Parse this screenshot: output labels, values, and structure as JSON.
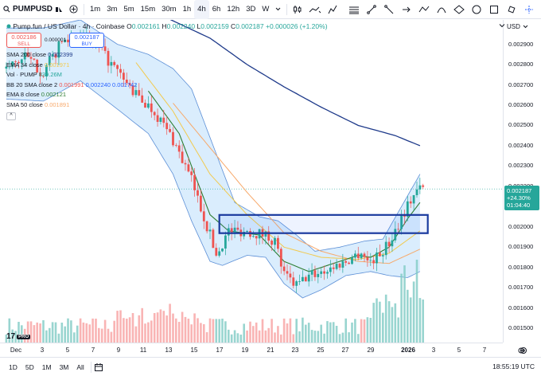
{
  "toolbar": {
    "symbol": "PUMPUSD",
    "intervals": [
      "1m",
      "3m",
      "5m",
      "15m",
      "30m",
      "1h",
      "4h",
      "6h",
      "12h",
      "3D",
      "W"
    ],
    "active_interval": "4h"
  },
  "header": {
    "title": "Pump.fun / US Dollar · 4h · Coinbase",
    "o_label": "O",
    "o_value": "0.002161",
    "h_label": "H",
    "h_value": "0.002240",
    "l_label": "L",
    "l_value": "0.002159",
    "c_label": "C",
    "c_value": "0.002187",
    "change": "+0.000026 (+1.20%)"
  },
  "trade": {
    "sell_price": "0.002186",
    "sell_label": "SELL",
    "spread": "0.000001",
    "buy_price": "0.002187",
    "buy_label": "BUY"
  },
  "legend": [
    {
      "label": "SMA 200 close",
      "values": [
        "0.002399"
      ],
      "colors": [
        "#1e3a8a"
      ]
    },
    {
      "label": "EMA 34 close",
      "values": [
        "0.001971"
      ],
      "colors": [
        "#f2c94c"
      ]
    },
    {
      "label": "Vol · PUMP",
      "values": [
        "839.26M"
      ],
      "colors": [
        "#26a69a"
      ]
    },
    {
      "label": "BB 20 SMA close 2",
      "values": [
        "0.001991",
        "0.002240",
        "0.001742"
      ],
      "colors": [
        "#ef5350",
        "#2962ff",
        "#2962ff"
      ]
    },
    {
      "label": "EMA 8 close",
      "values": [
        "0.002121"
      ],
      "colors": [
        "#2e7d32"
      ]
    },
    {
      "label": "SMA 50 close",
      "values": [
        "0.001891"
      ],
      "colors": [
        "#f7a96b"
      ]
    }
  ],
  "collapse_glyph": "^",
  "price_scale": {
    "currency": "USD",
    "labels": [
      "0.002900",
      "0.002800",
      "0.002700",
      "0.002600",
      "0.002500",
      "0.002400",
      "0.002300",
      "0.002200",
      "0.002100",
      "0.002000",
      "0.001900",
      "0.001800",
      "0.001700",
      "0.001600",
      "0.001500"
    ],
    "current_price": "0.002187",
    "current_change": "+24.30%",
    "countdown": "01:04:40"
  },
  "time_axis": [
    "Dec",
    "3",
    "5",
    "7",
    "9",
    "11",
    "13",
    "15",
    "17",
    "19",
    "21",
    "23",
    "25",
    "27",
    "29",
    "2026",
    "3",
    "5",
    "7"
  ],
  "bottom_bar": {
    "ranges": [
      "1D",
      "5D",
      "1M",
      "3M",
      "All"
    ],
    "clock": "18:55:19 UTC"
  },
  "logo": {
    "text": "17",
    "badge": "PRO"
  },
  "colors": {
    "up": "#26a69a",
    "down": "#ef5350",
    "vol_up": "#80cbc4",
    "vol_down": "#f7a1a1",
    "bb_fill": "#bbdefb",
    "bb_line": "#5c8fd6",
    "sma200": "#1e3a8a",
    "ema34": "#f2c94c",
    "ema8": "#2e7d32",
    "sma50": "#f7a96b",
    "bb_basis": "#ef9a9a",
    "zone": "#1a3a9e"
  },
  "chart_data": {
    "type": "candlestick",
    "title": "Pump.fun / US Dollar · 4h · Coinbase",
    "x_labels": [
      "Dec",
      "3",
      "5",
      "7",
      "9",
      "11",
      "13",
      "15",
      "17",
      "19",
      "21",
      "23",
      "25",
      "27",
      "29",
      "2026",
      "3",
      "5",
      "7"
    ],
    "ylim": [
      0.00143,
      0.00302
    ],
    "y_ticks": [
      0.0029,
      0.0028,
      0.0027,
      0.0026,
      0.0025,
      0.0024,
      0.0023,
      0.0022,
      0.0021,
      0.002,
      0.0019,
      0.0018,
      0.0017,
      0.0016,
      0.0015
    ],
    "close_path": [
      [
        0,
        0.00278
      ],
      [
        6,
        0.00284
      ],
      [
        12,
        0.00276
      ],
      [
        18,
        0.00291
      ],
      [
        24,
        0.00295
      ],
      [
        30,
        0.00288
      ],
      [
        36,
        0.00276
      ],
      [
        42,
        0.00265
      ],
      [
        48,
        0.00257
      ],
      [
        54,
        0.00243
      ],
      [
        60,
        0.00223
      ],
      [
        66,
        0.00196
      ],
      [
        68,
        0.00186
      ],
      [
        72,
        0.00198
      ],
      [
        78,
        0.00198
      ],
      [
        84,
        0.00196
      ],
      [
        87,
        0.00193
      ],
      [
        90,
        0.00176
      ],
      [
        94,
        0.00171
      ],
      [
        98,
        0.00176
      ],
      [
        104,
        0.00179
      ],
      [
        110,
        0.00183
      ],
      [
        115,
        0.00188
      ],
      [
        117,
        0.00183
      ],
      [
        120,
        0.00185
      ],
      [
        124,
        0.00192
      ],
      [
        128,
        0.00205
      ],
      [
        132,
        0.00216
      ],
      [
        134,
        0.00219
      ]
    ],
    "sma200_path": [
      [
        52,
        0.00303
      ],
      [
        66,
        0.00293
      ],
      [
        78,
        0.0028
      ],
      [
        90,
        0.00269
      ],
      [
        102,
        0.00259
      ],
      [
        114,
        0.0025
      ],
      [
        126,
        0.00245
      ],
      [
        134,
        0.0024
      ]
    ],
    "ema34_path": [
      [
        42,
        0.00281
      ],
      [
        54,
        0.00257
      ],
      [
        66,
        0.00226
      ],
      [
        78,
        0.00206
      ],
      [
        90,
        0.0019
      ],
      [
        102,
        0.00185
      ],
      [
        114,
        0.00184
      ],
      [
        124,
        0.00187
      ],
      [
        134,
        0.00198
      ]
    ],
    "sma50_path": [
      [
        54,
        0.00261
      ],
      [
        66,
        0.00239
      ],
      [
        78,
        0.00217
      ],
      [
        90,
        0.00197
      ],
      [
        102,
        0.00188
      ],
      [
        114,
        0.00183
      ],
      [
        124,
        0.00182
      ],
      [
        134,
        0.00189
      ]
    ],
    "ema8_path": [
      [
        46,
        0.00267
      ],
      [
        56,
        0.00246
      ],
      [
        66,
        0.00206
      ],
      [
        72,
        0.00198
      ],
      [
        82,
        0.00196
      ],
      [
        90,
        0.00183
      ],
      [
        98,
        0.00178
      ],
      [
        106,
        0.00182
      ],
      [
        114,
        0.00186
      ],
      [
        118,
        0.00185
      ],
      [
        124,
        0.0019
      ],
      [
        130,
        0.00204
      ],
      [
        134,
        0.00212
      ]
    ],
    "bb_upper_path": [
      [
        0,
        0.00298
      ],
      [
        12,
        0.00298
      ],
      [
        24,
        0.00302
      ],
      [
        36,
        0.0029
      ],
      [
        46,
        0.00285
      ],
      [
        54,
        0.00278
      ],
      [
        60,
        0.00268
      ],
      [
        66,
        0.00244
      ],
      [
        74,
        0.00212
      ],
      [
        82,
        0.00205
      ],
      [
        88,
        0.00203
      ],
      [
        94,
        0.00196
      ],
      [
        100,
        0.00188
      ],
      [
        108,
        0.0019
      ],
      [
        116,
        0.00193
      ],
      [
        122,
        0.00194
      ],
      [
        128,
        0.0021
      ],
      [
        134,
        0.00226
      ]
    ],
    "bb_lower_path": [
      [
        0,
        0.00263
      ],
      [
        12,
        0.00262
      ],
      [
        24,
        0.00272
      ],
      [
        36,
        0.00258
      ],
      [
        46,
        0.00246
      ],
      [
        54,
        0.00226
      ],
      [
        60,
        0.00203
      ],
      [
        66,
        0.00183
      ],
      [
        70,
        0.00181
      ],
      [
        78,
        0.00186
      ],
      [
        84,
        0.00185
      ],
      [
        90,
        0.00172
      ],
      [
        96,
        0.00165
      ],
      [
        102,
        0.00169
      ],
      [
        110,
        0.00176
      ],
      [
        118,
        0.00178
      ],
      [
        124,
        0.00176
      ],
      [
        130,
        0.00175
      ],
      [
        134,
        0.00178
      ]
    ],
    "zone": {
      "price_top": 0.002059,
      "price_bottom": 0.001969,
      "bar_start": 69,
      "bar_end": 136
    },
    "current_price_line": 0.002187,
    "volume_profile": "higher at Dec 10-16 and late Dec 31 - Jan 2"
  }
}
